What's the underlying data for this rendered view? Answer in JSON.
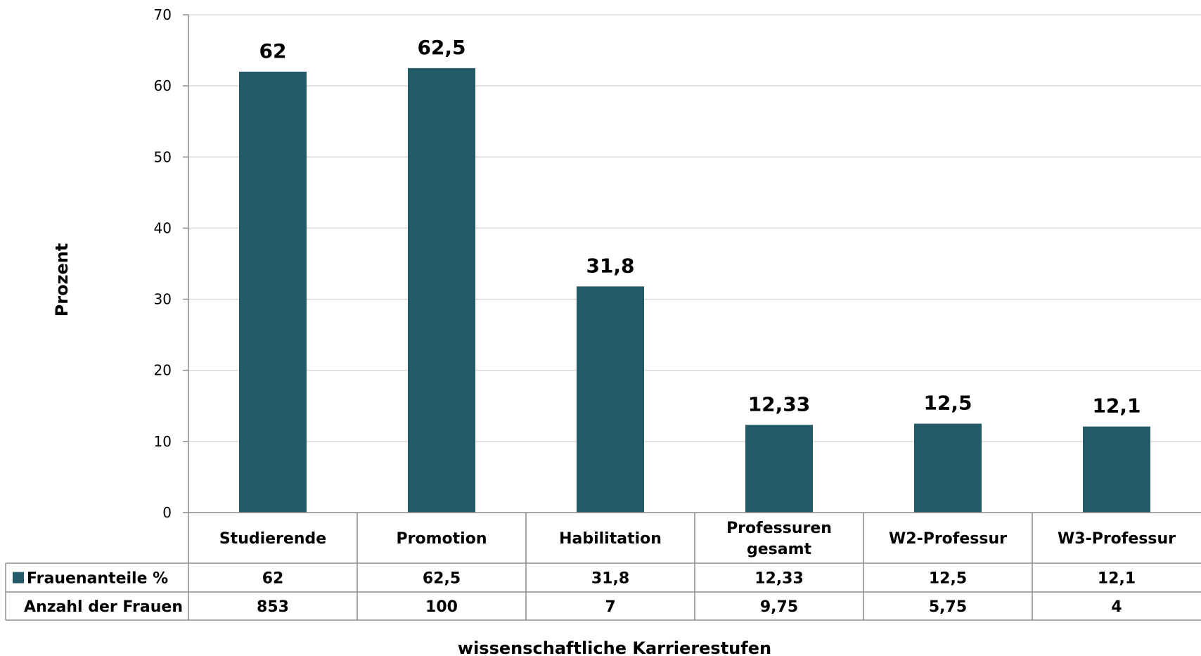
{
  "chart_data": {
    "type": "bar",
    "categories": [
      "Studierende",
      "Promotion",
      "Habilitation",
      "Professuren gesamt",
      "W2-Professur",
      "W3-Professur"
    ],
    "series": [
      {
        "name": "Frauenanteile %",
        "values": [
          62,
          62.5,
          31.8,
          12.33,
          12.5,
          12.1
        ],
        "color": "#245a68"
      }
    ],
    "data_labels": [
      "62",
      "62,5",
      "31,8",
      "12,33",
      "12,5",
      "12,1"
    ],
    "ylabel": "Prozent",
    "xlabel": "wissenschaftliche Karrierestufen",
    "ylim": [
      0,
      70
    ],
    "yticks": [
      "0",
      "10",
      "20",
      "30",
      "40",
      "50",
      "60",
      "70"
    ],
    "grid": true,
    "data_table": {
      "rows": [
        {
          "label": "Frauenanteile %",
          "legend_key": true,
          "values": [
            "62",
            "62,5",
            "31,8",
            "12,33",
            "12,5",
            "12,1"
          ]
        },
        {
          "label": "Anzahl der Frauen",
          "legend_key": false,
          "values": [
            "853",
            "100",
            "7",
            "9,75",
            "5,75",
            "4"
          ]
        }
      ]
    }
  }
}
